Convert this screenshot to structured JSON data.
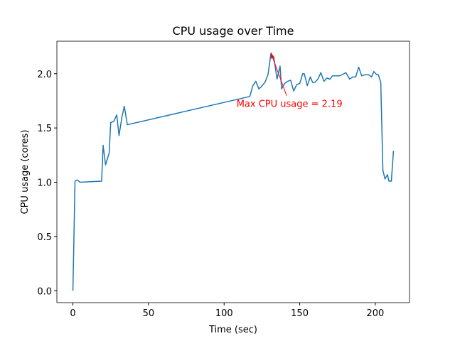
{
  "chart_data": {
    "type": "line",
    "title": "CPU usage over Time",
    "xlabel": "Time (sec)",
    "ylabel": "CPU usage (cores)",
    "x": [
      0,
      1.4,
      3,
      4.7,
      19,
      20,
      21.6,
      24,
      25,
      27,
      29,
      30.5,
      32.4,
      34,
      36,
      117,
      119,
      121,
      123,
      124.6,
      127,
      129,
      131,
      133,
      135,
      137,
      138,
      140,
      142,
      144,
      146,
      148,
      150,
      152,
      153,
      155,
      157,
      158.5,
      160,
      162,
      164,
      166,
      168,
      170,
      171.6,
      174,
      176,
      178,
      180.5,
      183,
      185,
      187,
      189,
      191,
      193,
      195.6,
      197.5,
      199,
      201,
      202,
      203.6,
      205,
      206.4,
      208,
      209,
      210.6,
      212
    ],
    "values": [
      0,
      1.01,
      1.02,
      1.0,
      1.01,
      1.34,
      1.16,
      1.27,
      1.55,
      1.56,
      1.62,
      1.43,
      1.6,
      1.7,
      1.53,
      1.79,
      1.89,
      1.93,
      1.86,
      1.88,
      1.92,
      1.99,
      2.19,
      2.14,
      1.95,
      2.07,
      1.86,
      1.91,
      1.93,
      1.94,
      1.84,
      1.9,
      1.91,
      2.0,
      2.0,
      1.89,
      1.97,
      1.92,
      1.92,
      1.95,
      2.01,
      1.93,
      1.96,
      1.95,
      1.98,
      1.98,
      1.98,
      1.99,
      2.01,
      1.95,
      1.97,
      1.97,
      2.06,
      1.98,
      1.99,
      1.99,
      1.97,
      2.02,
      1.99,
      1.99,
      1.92,
      1.11,
      1.03,
      1.07,
      1.01,
      1.01,
      1.29
    ],
    "color": "#1f77b4",
    "xlim": [
      -10.6,
      222.6
    ],
    "xticks": [
      0,
      50,
      100,
      150,
      200
    ],
    "ylim": [
      -0.1095,
      2.2995
    ],
    "yticks": [
      {
        "value": 0,
        "label": "0.0"
      },
      {
        "value": 0.5,
        "label": "0.5"
      },
      {
        "value": 1,
        "label": "1.0"
      },
      {
        "value": 1.5,
        "label": "1.5"
      },
      {
        "value": 2,
        "label": "2.0"
      }
    ],
    "annotation": {
      "text": "Max CPU usage = 2.19",
      "color": "red"
    }
  }
}
